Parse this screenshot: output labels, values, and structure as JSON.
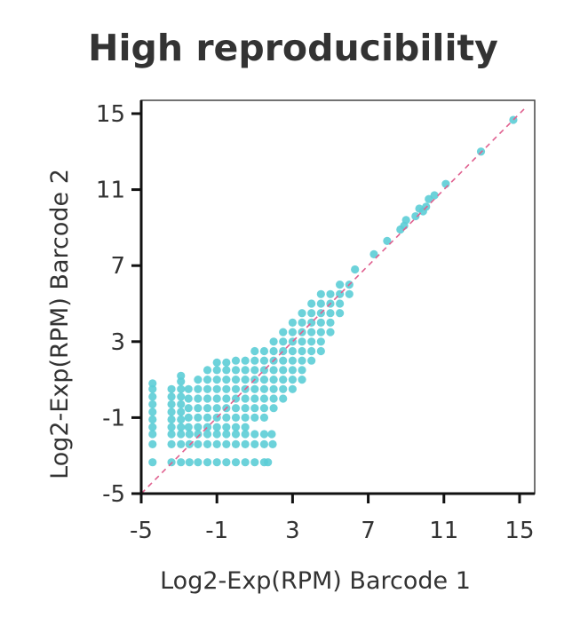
{
  "chart_data": {
    "type": "scatter",
    "title": "High reproducibility",
    "xlabel": "Log2-Exp(RPM) Barcode 1",
    "ylabel": "Log2-Exp(RPM) Barcode 2",
    "xlim": [
      -5,
      15.8
    ],
    "ylim": [
      -5,
      15.7
    ],
    "xticks": [
      "-5",
      "-1",
      "3",
      "7",
      "11",
      "15"
    ],
    "yticks": [
      "-5",
      "-1",
      "3",
      "7",
      "11",
      "15"
    ],
    "grid": false,
    "reference_line": {
      "type": "y=x",
      "style": "dashed"
    },
    "colors": {
      "points": "#5ccdd6",
      "reference_line": "#e0608f",
      "axis": "#111111"
    },
    "points": [
      [
        -4.4,
        -3.35
      ],
      [
        -4.4,
        -2.4
      ],
      [
        -4.4,
        -1.87
      ],
      [
        -4.4,
        -1.5
      ],
      [
        -4.4,
        -1.1
      ],
      [
        -4.4,
        -0.7
      ],
      [
        -4.4,
        -0.3
      ],
      [
        -4.4,
        0.1
      ],
      [
        -4.4,
        0.5
      ],
      [
        -4.4,
        0.8
      ],
      [
        -3.4,
        -3.35
      ],
      [
        -3.4,
        -2.4
      ],
      [
        -3.4,
        -1.87
      ],
      [
        -3.4,
        -1.5
      ],
      [
        -3.4,
        -1.1
      ],
      [
        -3.4,
        -0.7
      ],
      [
        -3.4,
        -0.3
      ],
      [
        -3.4,
        0.1
      ],
      [
        -3.4,
        0.5
      ],
      [
        -2.9,
        -3.35
      ],
      [
        -2.9,
        -2.4
      ],
      [
        -2.9,
        -1.87
      ],
      [
        -2.9,
        -1.5
      ],
      [
        -2.9,
        -1.1
      ],
      [
        -2.9,
        -0.7
      ],
      [
        -2.9,
        -0.3
      ],
      [
        -2.9,
        0.1
      ],
      [
        -2.9,
        0.5
      ],
      [
        -2.9,
        0.9
      ],
      [
        -2.9,
        1.2
      ],
      [
        -2.45,
        -3.35
      ],
      [
        -2.0,
        -3.35
      ],
      [
        -1.5,
        -3.35
      ],
      [
        -1.0,
        -3.35
      ],
      [
        -0.5,
        -3.35
      ],
      [
        0.0,
        -3.35
      ],
      [
        0.5,
        -3.35
      ],
      [
        1.0,
        -3.35
      ],
      [
        1.5,
        -3.35
      ],
      [
        1.7,
        -3.35
      ],
      [
        -2.45,
        -2.4
      ],
      [
        -2.0,
        -2.4
      ],
      [
        -1.5,
        -2.4
      ],
      [
        -1.0,
        -2.4
      ],
      [
        -0.5,
        -2.4
      ],
      [
        0.0,
        -2.4
      ],
      [
        0.5,
        -2.4
      ],
      [
        1.0,
        -2.4
      ],
      [
        1.5,
        -2.4
      ],
      [
        1.95,
        -2.4
      ],
      [
        -2.45,
        -1.87
      ],
      [
        -2.0,
        -1.87
      ],
      [
        -1.5,
        -1.87
      ],
      [
        -1.0,
        -1.87
      ],
      [
        -0.5,
        -1.87
      ],
      [
        0.0,
        -1.87
      ],
      [
        0.5,
        -1.87
      ],
      [
        1.0,
        -1.87
      ],
      [
        1.5,
        -1.87
      ],
      [
        1.9,
        -1.87
      ],
      [
        -2.5,
        -1.5
      ],
      [
        -2.5,
        -1.0
      ],
      [
        -2.5,
        -0.5
      ],
      [
        -2.5,
        0.0
      ],
      [
        -2.5,
        0.5
      ],
      [
        -2.0,
        -1.5
      ],
      [
        -2.0,
        -1.0
      ],
      [
        -2.0,
        -0.5
      ],
      [
        -2.0,
        0.0
      ],
      [
        -2.0,
        0.5
      ],
      [
        -2.0,
        1.0
      ],
      [
        -1.5,
        -1.5
      ],
      [
        -1.5,
        -1.0
      ],
      [
        -1.5,
        -0.5
      ],
      [
        -1.5,
        0.0
      ],
      [
        -1.5,
        0.5
      ],
      [
        -1.5,
        1.0
      ],
      [
        -1.5,
        1.5
      ],
      [
        -1.0,
        -1.5
      ],
      [
        -1.0,
        -1.0
      ],
      [
        -1.0,
        -0.5
      ],
      [
        -1.0,
        0.0
      ],
      [
        -1.0,
        0.5
      ],
      [
        -1.0,
        1.0
      ],
      [
        -1.0,
        1.5
      ],
      [
        -1.0,
        1.9
      ],
      [
        -0.5,
        -1.5
      ],
      [
        -0.5,
        -1.0
      ],
      [
        -0.5,
        -0.5
      ],
      [
        -0.5,
        0.0
      ],
      [
        -0.5,
        0.5
      ],
      [
        -0.5,
        1.0
      ],
      [
        -0.5,
        1.5
      ],
      [
        -0.5,
        1.9
      ],
      [
        0.0,
        -1.5
      ],
      [
        0.0,
        -1.0
      ],
      [
        0.0,
        -0.5
      ],
      [
        0.0,
        0.0
      ],
      [
        0.0,
        0.5
      ],
      [
        0.0,
        1.0
      ],
      [
        0.0,
        1.5
      ],
      [
        0.0,
        2.0
      ],
      [
        0.5,
        -1.5
      ],
      [
        0.5,
        -1.0
      ],
      [
        0.5,
        -0.5
      ],
      [
        0.5,
        0.0
      ],
      [
        0.5,
        0.5
      ],
      [
        0.5,
        1.0
      ],
      [
        0.5,
        1.5
      ],
      [
        0.5,
        2.0
      ],
      [
        1.0,
        -1.0
      ],
      [
        1.0,
        -0.5
      ],
      [
        1.0,
        0.0
      ],
      [
        1.0,
        0.5
      ],
      [
        1.0,
        1.0
      ],
      [
        1.0,
        1.5
      ],
      [
        1.0,
        2.0
      ],
      [
        1.0,
        2.5
      ],
      [
        1.5,
        -1.0
      ],
      [
        1.5,
        -0.5
      ],
      [
        1.5,
        0.0
      ],
      [
        1.5,
        0.5
      ],
      [
        1.5,
        1.0
      ],
      [
        1.5,
        1.5
      ],
      [
        1.5,
        2.0
      ],
      [
        1.5,
        2.5
      ],
      [
        2.0,
        -0.5
      ],
      [
        2.0,
        0.0
      ],
      [
        2.0,
        0.5
      ],
      [
        2.0,
        1.0
      ],
      [
        2.0,
        1.5
      ],
      [
        2.0,
        2.0
      ],
      [
        2.0,
        2.5
      ],
      [
        2.0,
        3.0
      ],
      [
        2.5,
        0.0
      ],
      [
        2.5,
        0.5
      ],
      [
        2.5,
        1.0
      ],
      [
        2.5,
        1.5
      ],
      [
        2.5,
        2.0
      ],
      [
        2.5,
        2.5
      ],
      [
        2.5,
        3.0
      ],
      [
        2.5,
        3.5
      ],
      [
        3.0,
        0.5
      ],
      [
        3.0,
        1.0
      ],
      [
        3.0,
        1.5
      ],
      [
        3.0,
        2.0
      ],
      [
        3.0,
        2.5
      ],
      [
        3.0,
        3.0
      ],
      [
        3.0,
        3.5
      ],
      [
        3.0,
        4.0
      ],
      [
        3.5,
        1.0
      ],
      [
        3.5,
        1.5
      ],
      [
        3.5,
        2.0
      ],
      [
        3.5,
        2.5
      ],
      [
        3.5,
        3.0
      ],
      [
        3.5,
        3.5
      ],
      [
        3.5,
        4.0
      ],
      [
        3.5,
        4.5
      ],
      [
        4.0,
        2.0
      ],
      [
        4.0,
        2.5
      ],
      [
        4.0,
        3.0
      ],
      [
        4.0,
        3.5
      ],
      [
        4.0,
        4.0
      ],
      [
        4.0,
        4.5
      ],
      [
        4.0,
        5.0
      ],
      [
        4.5,
        2.5
      ],
      [
        4.5,
        3.0
      ],
      [
        4.5,
        3.5
      ],
      [
        4.5,
        4.0
      ],
      [
        4.5,
        4.5
      ],
      [
        4.5,
        5.0
      ],
      [
        4.5,
        5.5
      ],
      [
        5.0,
        3.5
      ],
      [
        5.0,
        4.0
      ],
      [
        5.0,
        4.5
      ],
      [
        5.0,
        5.0
      ],
      [
        5.0,
        5.5
      ],
      [
        5.5,
        4.5
      ],
      [
        5.5,
        5.0
      ],
      [
        5.5,
        5.5
      ],
      [
        5.5,
        6.0
      ],
      [
        6.0,
        5.5
      ],
      [
        6.0,
        6.0
      ],
      [
        6.3,
        6.8
      ],
      [
        7.3,
        7.6
      ],
      [
        8.0,
        8.3
      ],
      [
        8.7,
        8.9
      ],
      [
        8.9,
        9.1
      ],
      [
        9.0,
        9.4
      ],
      [
        9.5,
        9.6
      ],
      [
        9.7,
        10.0
      ],
      [
        9.9,
        9.86
      ],
      [
        10.06,
        10.1
      ],
      [
        10.2,
        10.5
      ],
      [
        10.5,
        10.7
      ],
      [
        11.1,
        11.3
      ],
      [
        12.96,
        13.0
      ],
      [
        14.67,
        14.67
      ]
    ]
  }
}
